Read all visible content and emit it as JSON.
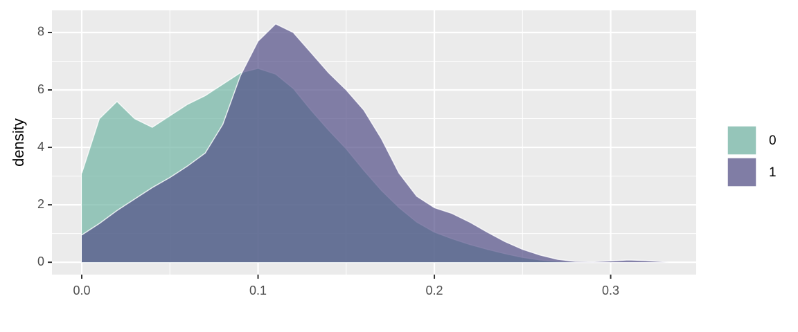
{
  "chart_data": {
    "type": "density",
    "y_label": "density",
    "x": [
      0,
      0.01,
      0.02,
      0.03,
      0.04,
      0.05,
      0.06,
      0.07,
      0.08,
      0.09,
      0.1,
      0.11,
      0.12,
      0.13,
      0.14,
      0.15,
      0.16,
      0.17,
      0.18,
      0.19,
      0.2,
      0.21,
      0.22,
      0.23,
      0.24,
      0.25,
      0.26,
      0.27,
      0.28,
      0.29,
      0.3,
      0.31,
      0.32,
      0.33,
      0.333
    ],
    "series": [
      {
        "name": "0",
        "color": "#71b5a4",
        "values": [
          3.1,
          5.0,
          5.6,
          5.0,
          4.7,
          5.1,
          5.5,
          5.8,
          6.2,
          6.6,
          6.75,
          6.55,
          6.05,
          5.3,
          4.6,
          3.95,
          3.2,
          2.5,
          1.9,
          1.4,
          1.05,
          0.82,
          0.62,
          0.45,
          0.3,
          0.17,
          0.08,
          0.03,
          0.01,
          null,
          null,
          null,
          null,
          null,
          null
        ]
      },
      {
        "name": "1",
        "color": "#534f87",
        "values": [
          0.95,
          1.35,
          1.8,
          2.2,
          2.6,
          2.95,
          3.35,
          3.8,
          4.8,
          6.5,
          7.7,
          8.3,
          8.0,
          7.3,
          6.6,
          6.0,
          5.3,
          4.3,
          3.1,
          2.3,
          1.9,
          1.7,
          1.4,
          1.05,
          0.72,
          0.45,
          0.25,
          0.1,
          0.03,
          0.02,
          0.05,
          0.08,
          0.06,
          0.02,
          0.0
        ]
      }
    ],
    "xlim": [
      -0.0169,
      0.3485
    ],
    "ylim": [
      -0.43,
      8.77
    ],
    "xticks": [
      {
        "value": 0,
        "label": "0.0"
      },
      0.1,
      0.2,
      0.3
    ],
    "yticks": [
      0,
      2,
      4,
      6,
      8
    ],
    "grid": true,
    "legend": "right"
  }
}
